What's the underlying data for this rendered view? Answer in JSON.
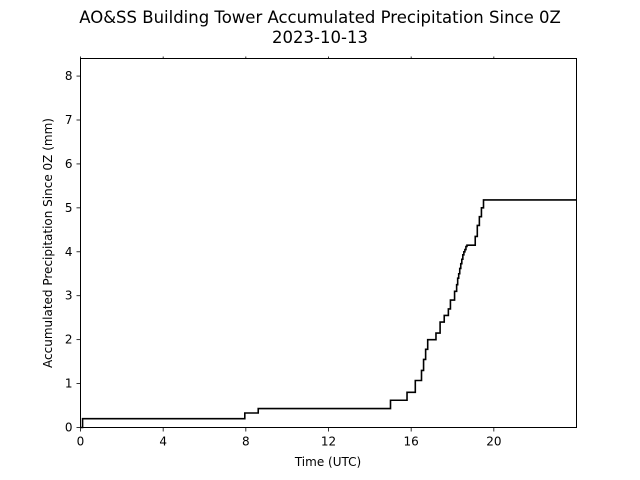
{
  "chart_data": {
    "type": "line",
    "title": "AO&SS Building Tower Accumulated Precipitation Since 0Z",
    "subtitle": "2023-10-13",
    "xlabel": "Time (UTC)",
    "ylabel": "Accumulated Precipitation Since 0Z (mm)",
    "xlim": [
      0,
      24
    ],
    "ylim": [
      0,
      8.4
    ],
    "xticks": [
      0,
      4,
      8,
      12,
      16,
      20
    ],
    "yticks": [
      0,
      1,
      2,
      3,
      4,
      5,
      6,
      7,
      8
    ],
    "grid": false,
    "line_color": "#000000",
    "series": [
      {
        "x": [
          0,
          0.1,
          0.1,
          7.95,
          7.95,
          8.6,
          8.6,
          15.0,
          15.0,
          15.8,
          15.8,
          16.2,
          16.2,
          16.5,
          16.5,
          16.6,
          16.6,
          16.7,
          16.7,
          16.8,
          16.8,
          17.2,
          17.2,
          17.4,
          17.4,
          17.6,
          17.6,
          17.8,
          17.8,
          17.9,
          17.9,
          18.1,
          18.1,
          18.2,
          18.2,
          18.25,
          18.25,
          18.3,
          18.3,
          18.35,
          18.35,
          18.4,
          18.4,
          18.45,
          18.45,
          18.5,
          18.5,
          18.55,
          18.55,
          18.6,
          18.6,
          18.65,
          18.65,
          18.7,
          18.7,
          18.8,
          18.8,
          19.1,
          19.1,
          19.2,
          19.2,
          19.3,
          19.3,
          19.4,
          19.4,
          19.5,
          19.5,
          19.6,
          19.6,
          24
        ],
        "values": [
          0,
          0,
          0.2,
          0.2,
          0.33,
          0.33,
          0.43,
          0.43,
          0.62,
          0.62,
          0.8,
          0.8,
          1.07,
          1.07,
          1.3,
          1.3,
          1.55,
          1.55,
          1.78,
          1.78,
          2.0,
          2.0,
          2.15,
          2.15,
          2.4,
          2.4,
          2.55,
          2.55,
          2.7,
          2.7,
          2.9,
          2.9,
          3.1,
          3.1,
          3.25,
          3.25,
          3.4,
          3.4,
          3.5,
          3.5,
          3.62,
          3.62,
          3.73,
          3.73,
          3.83,
          3.83,
          3.93,
          3.93,
          4.0,
          4.0,
          4.05,
          4.05,
          4.12,
          4.12,
          4.15,
          4.15,
          4.15,
          4.15,
          4.35,
          4.35,
          4.6,
          4.6,
          4.8,
          4.8,
          5.0,
          5.0,
          5.18,
          5.18,
          5.18,
          5.18
        ]
      }
    ]
  }
}
